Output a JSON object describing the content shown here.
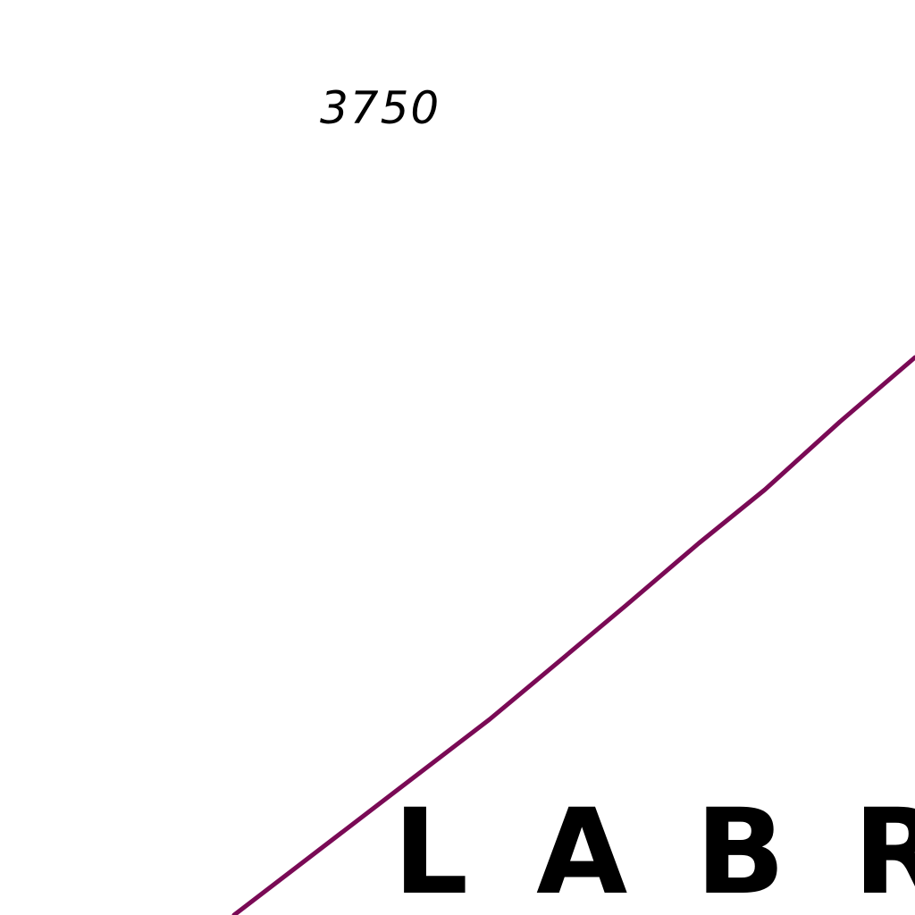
{
  "map": {
    "elevation_label": "3750",
    "place_name": "LABR",
    "boundary": {
      "color": "#7a0a55",
      "type": "boundary-line"
    }
  }
}
